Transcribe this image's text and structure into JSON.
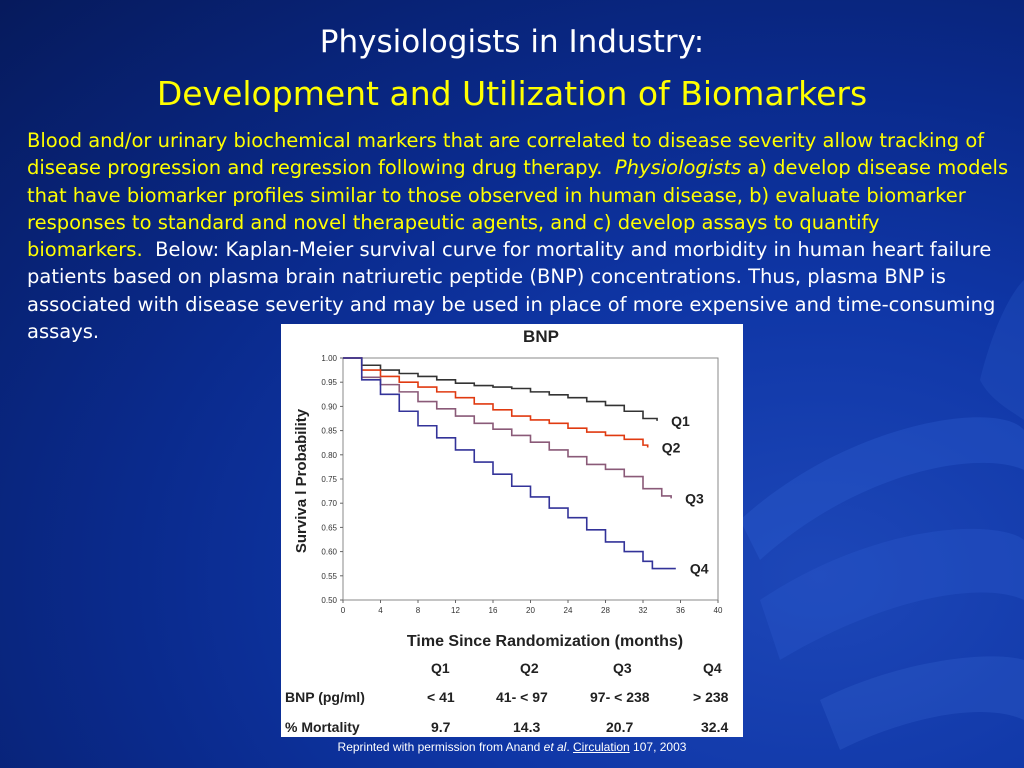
{
  "title_line1": "Physiologists in Industry:",
  "title_line2": "Development and Utilization of Biomarkers",
  "body": {
    "yellow_part1": "Blood and/or urinary biochemical markers that are correlated to disease severity allow tracking of disease progression and regression following drug therapy.",
    "italic_word": "Physiologists",
    "yellow_part2": " a) develop disease models that have biomarker profiles similar to those observed in human disease, b) evaluate biomarker responses to standard and novel therapeutic agents, and c) develop assays to quantify biomarkers.",
    "white_part": "Below: Kaplan-Meier survival curve for mortality and morbidity in human heart failure patients based on plasma brain natriuretic peptide (BNP) concentrations. Thus, plasma BNP is associated with disease severity and may be used in place of more expensive and time-consuming assays."
  },
  "caption": {
    "prefix": "Reprinted with permission from Anand ",
    "etal": "et al",
    "dot": ". ",
    "journal": "Circulation",
    "suffix": " 107, 2003"
  },
  "table": {
    "headers": [
      "Q1",
      "Q2",
      "Q3",
      "Q4"
    ],
    "rows": [
      {
        "label": "BNP (pg/ml)",
        "cells": [
          "< 41",
          "41- < 97",
          "97- < 238",
          "> 238"
        ]
      },
      {
        "label": "% Mortality",
        "cells": [
          "9.7",
          "14.3",
          "20.7",
          "32.4"
        ]
      }
    ]
  },
  "chart_data": {
    "type": "line",
    "title": "BNP",
    "xlabel": "Time Since Randomization (months)",
    "ylabel": "Surviva l Probability",
    "xlim": [
      0,
      40
    ],
    "ylim": [
      0.5,
      1.0
    ],
    "xticks": [
      "0",
      "4",
      "8",
      "12",
      "16",
      "20",
      "24",
      "28",
      "32",
      "36",
      "40"
    ],
    "yticks": [
      "0.50",
      "0.55",
      "0.60",
      "0.65",
      "0.70",
      "0.75",
      "0.80",
      "0.85",
      "0.90",
      "0.95",
      "1.00"
    ],
    "series": [
      {
        "name": "Q1",
        "color": "#333333",
        "x": [
          0,
          2,
          4,
          6,
          8,
          10,
          12,
          14,
          16,
          18,
          20,
          22,
          24,
          26,
          28,
          30,
          32,
          33.5
        ],
        "y": [
          1.0,
          0.985,
          0.975,
          0.968,
          0.962,
          0.955,
          0.948,
          0.943,
          0.94,
          0.937,
          0.93,
          0.924,
          0.918,
          0.91,
          0.902,
          0.89,
          0.875,
          0.87
        ]
      },
      {
        "name": "Q2",
        "color": "#e03a10",
        "x": [
          0,
          2,
          4,
          6,
          8,
          10,
          12,
          14,
          16,
          18,
          20,
          22,
          24,
          26,
          28,
          30,
          32,
          32.5
        ],
        "y": [
          1.0,
          0.975,
          0.962,
          0.95,
          0.94,
          0.93,
          0.918,
          0.905,
          0.893,
          0.88,
          0.872,
          0.865,
          0.855,
          0.847,
          0.84,
          0.832,
          0.82,
          0.815
        ]
      },
      {
        "name": "Q3",
        "color": "#8a5a78",
        "x": [
          0,
          2,
          4,
          6,
          8,
          10,
          12,
          14,
          16,
          18,
          20,
          22,
          24,
          26,
          28,
          30,
          32,
          34,
          35
        ],
        "y": [
          1.0,
          0.96,
          0.945,
          0.93,
          0.91,
          0.895,
          0.88,
          0.865,
          0.853,
          0.84,
          0.826,
          0.81,
          0.796,
          0.78,
          0.77,
          0.755,
          0.73,
          0.715,
          0.71
        ]
      },
      {
        "name": "Q4",
        "color": "#333399",
        "x": [
          0,
          2,
          4,
          6,
          8,
          10,
          12,
          14,
          16,
          18,
          20,
          22,
          24,
          26,
          28,
          30,
          32,
          33,
          35.5
        ],
        "y": [
          1.0,
          0.955,
          0.925,
          0.89,
          0.86,
          0.835,
          0.81,
          0.785,
          0.76,
          0.735,
          0.713,
          0.69,
          0.67,
          0.645,
          0.62,
          0.6,
          0.58,
          0.565,
          0.565
        ]
      }
    ]
  }
}
